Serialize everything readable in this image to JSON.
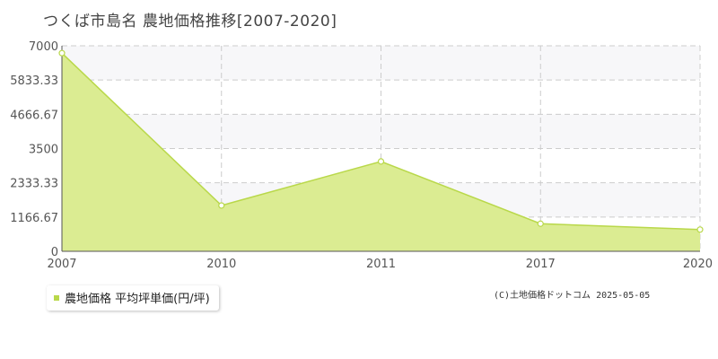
{
  "chart_data": {
    "type": "area",
    "title": "つくば市島名  農地価格推移[2007-2020]",
    "categories": [
      "2007",
      "2010",
      "2011",
      "2017",
      "2020"
    ],
    "series": [
      {
        "name": "農地価格 平均坪単価(円/坪)",
        "values": [
          6750,
          1560,
          3060,
          940,
          740
        ]
      }
    ],
    "ylim": [
      0,
      7000
    ],
    "yticks": [
      "0",
      "1166.67",
      "2333.33",
      "3500",
      "4666.67",
      "5833.33",
      "7000"
    ],
    "grid": true,
    "legend_position": "bottom-left",
    "colors": {
      "fill": "#dbec92",
      "line": "#b9d84a",
      "point_fill": "#ffffff",
      "grid": "#cccccc",
      "band": "#f7f7f9",
      "legend_swatch": "#b9d84a"
    }
  },
  "copyright": "(C)土地価格ドットコム 2025-05-05"
}
